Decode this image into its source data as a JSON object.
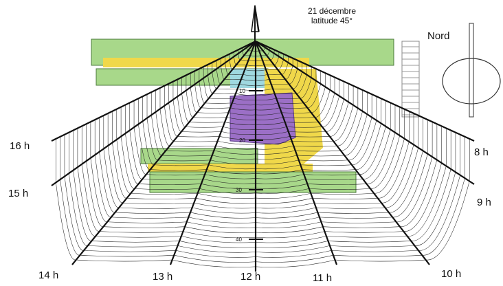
{
  "header": {
    "date": "21 décembre",
    "latitude": "latitude 45°"
  },
  "compass": {
    "label": "Nord"
  },
  "hours": {
    "h16": "16 h",
    "h15": "15 h",
    "h14": "14 h",
    "h13": "13 h",
    "h12": "12 h",
    "h11": "11 h",
    "h10": "10 h",
    "h9": "9 h",
    "h8": "8 h"
  },
  "distance_marks": [
    "10",
    "20",
    "30",
    "40"
  ],
  "colors": {
    "classrooms": "#a8d88a",
    "corridors": "#f0d84a",
    "hall": "#9b6fc6",
    "annex": "#9fd8e0",
    "ink": "#111111"
  }
}
